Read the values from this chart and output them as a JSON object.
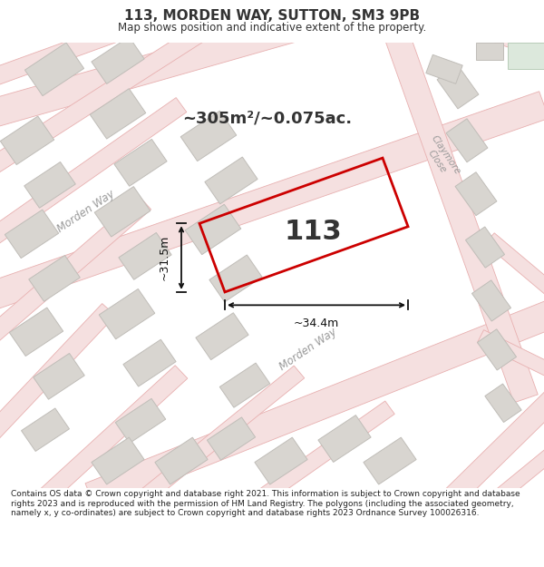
{
  "title": "113, MORDEN WAY, SUTTON, SM3 9PB",
  "subtitle": "Map shows position and indicative extent of the property.",
  "area_label": "~305m²/~0.075ac.",
  "plot_number": "113",
  "dim_width": "~34.4m",
  "dim_height": "~31.5m",
  "footer": "Contains OS data © Crown copyright and database right 2021. This information is subject to Crown copyright and database rights 2023 and is reproduced with the permission of HM Land Registry. The polygons (including the associated geometry, namely x, y co-ordinates) are subject to Crown copyright and database rights 2023 Ordnance Survey 100026316.",
  "map_bg": "#f0eeeb",
  "road_line_color": "#e8b0b0",
  "road_fill_color": "#f5e0e0",
  "plot_edge": "#cc0000",
  "building_fill": "#d8d5d0",
  "building_edge": "#c0bdb8",
  "green_fill": "#dce8dc",
  "green_edge": "#b8ccb8",
  "text_color": "#333333",
  "dim_color": "#111111",
  "road_label_color": "#999999",
  "footer_color": "#222222",
  "title_fontsize": 11,
  "subtitle_fontsize": 8.5,
  "area_fontsize": 13,
  "plot_num_fontsize": 22,
  "dim_fontsize": 9,
  "road_label_fontsize": 8.5,
  "footer_fontsize": 6.5
}
